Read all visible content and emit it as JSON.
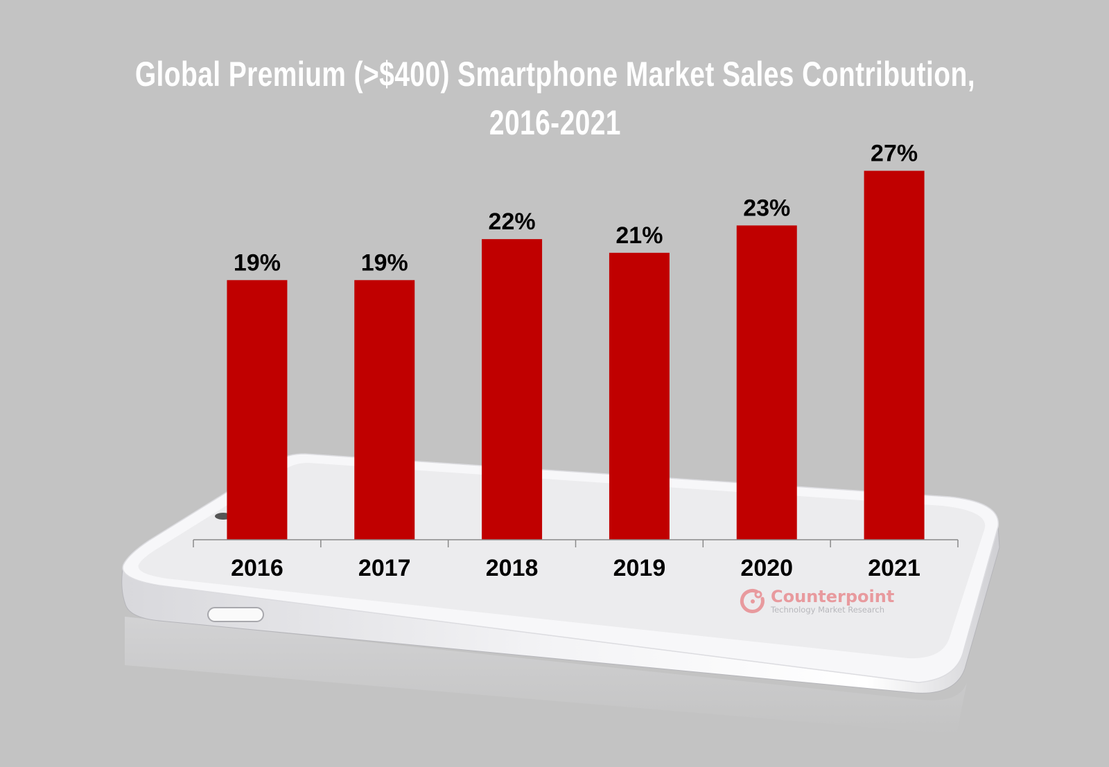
{
  "chart_data": {
    "type": "bar",
    "title": "Global Premium (>$400) Smartphone Market Sales Contribution,",
    "title_line2": "2016-2021",
    "categories": [
      "2016",
      "2017",
      "2018",
      "2019",
      "2020",
      "2021"
    ],
    "values": [
      19,
      19,
      22,
      21,
      23,
      27
    ],
    "data_labels": [
      "19%",
      "19%",
      "22%",
      "21%",
      "23%",
      "27%"
    ],
    "unit": "%",
    "xlabel": "",
    "ylabel": "",
    "ylim": [
      0,
      39.5
    ],
    "grid": false,
    "legend": "none",
    "bar_color": "#c00000",
    "background": "#c3c3c3"
  },
  "watermark": {
    "name": "Counterpoint",
    "tagline": "Technology Market Research",
    "color": "#e89a9e"
  }
}
